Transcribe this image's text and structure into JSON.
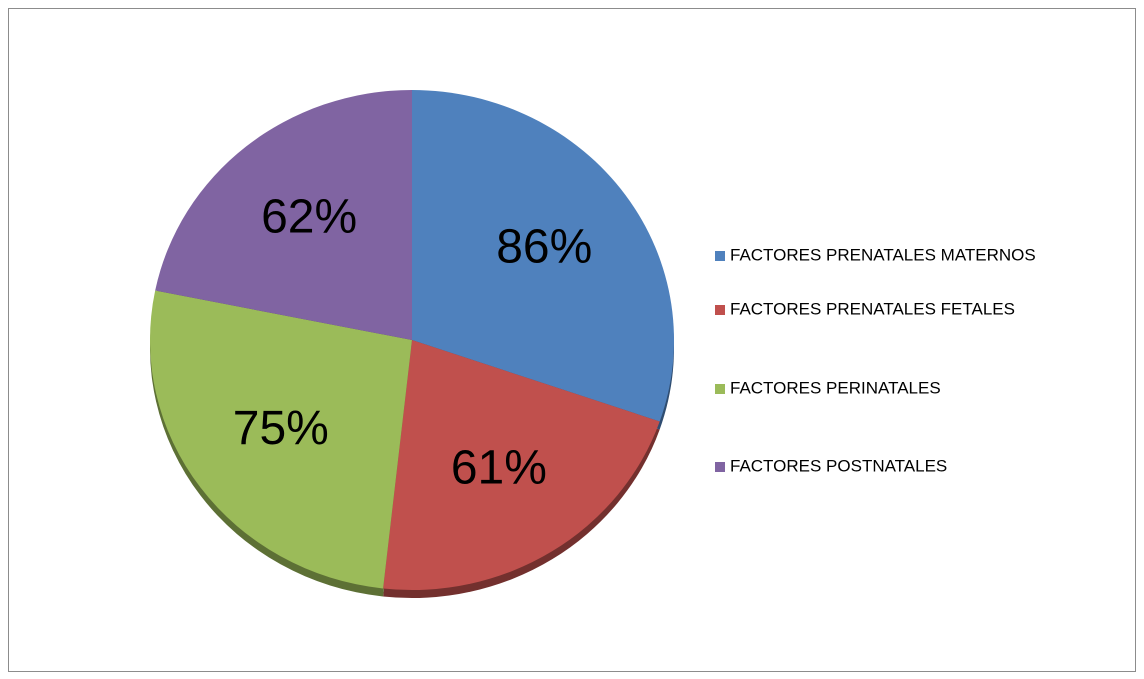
{
  "chart_data": {
    "type": "pie",
    "categories": [
      "FACTORES PRENATALES MATERNOS",
      "FACTORES PRENATALES FETALES",
      "FACTORES PERINATALES",
      "FACTORES POSTNATALES"
    ],
    "values": [
      86,
      61,
      75,
      62
    ],
    "value_labels": [
      "86%",
      "61%",
      "75%",
      "62%"
    ],
    "colors": [
      "#4f81bd",
      "#c0504d",
      "#9bbb59",
      "#8064a2"
    ],
    "legend": "right"
  }
}
